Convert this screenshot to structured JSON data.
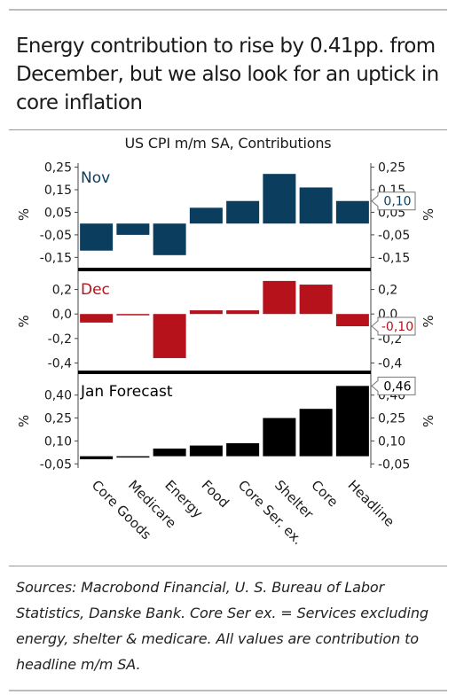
{
  "title": "Energy contribution to rise by 0.41pp. from December, but we also look for an uptick in core inflation",
  "subtitle": "US CPI m/m SA, Contributions",
  "source_note": "Sources: Macrobond Financial, U. S. Bureau of Labor Statistics, Danske Bank. Core Ser ex. = Services excluding energy, shelter & medicare. All values are contribution to headline m/m SA.",
  "chart_data": [
    {
      "type": "bar",
      "panel": "Nov",
      "color": "#0b3d5e",
      "categories": [
        "Core Goods",
        "Medicare",
        "Energy",
        "Food",
        "Core Ser. ex.",
        "Shelter",
        "Core",
        "Headline"
      ],
      "values": [
        -0.12,
        -0.05,
        -0.14,
        0.07,
        0.1,
        0.22,
        0.16,
        0.1
      ],
      "yticks": [
        {
          "v": 0.25,
          "l": "0,25"
        },
        {
          "v": 0.15,
          "l": "0,15"
        },
        {
          "v": 0.05,
          "l": "0,05"
        },
        {
          "v": -0.05,
          "l": "-0,05"
        },
        {
          "v": -0.15,
          "l": "-0,15"
        }
      ],
      "ylim": [
        -0.18,
        0.26
      ],
      "ylabel": "%",
      "last_value_label": "0,10"
    },
    {
      "type": "bar",
      "panel": "Dec",
      "color": "#b5121b",
      "categories": [
        "Core Goods",
        "Medicare",
        "Energy",
        "Food",
        "Core Ser. ex.",
        "Shelter",
        "Core",
        "Headline"
      ],
      "values": [
        -0.07,
        -0.005,
        -0.36,
        0.03,
        0.03,
        0.27,
        0.24,
        -0.1
      ],
      "yticks": [
        {
          "v": 0.2,
          "l": "0,2"
        },
        {
          "v": 0.0,
          "l": "0,0"
        },
        {
          "v": -0.2,
          "l": "-0,2"
        },
        {
          "v": -0.4,
          "l": "-0,4"
        }
      ],
      "ylim": [
        -0.44,
        0.32
      ],
      "ylabel": "%",
      "last_value_label": "-0,10"
    },
    {
      "type": "bar",
      "panel": "Jan Forecast",
      "color": "#000000",
      "categories": [
        "Core Goods",
        "Medicare",
        "Energy",
        "Food",
        "Core Ser. ex.",
        "Shelter",
        "Core",
        "Headline"
      ],
      "values": [
        -0.02,
        0.0,
        0.05,
        0.07,
        0.085,
        0.25,
        0.31,
        0.46
      ],
      "yticks": [
        {
          "v": 0.4,
          "l": "0,40"
        },
        {
          "v": 0.25,
          "l": "0,25"
        },
        {
          "v": 0.1,
          "l": "0,10"
        },
        {
          "v": -0.05,
          "l": "-0,05"
        }
      ],
      "ylim": [
        -0.06,
        0.52
      ],
      "ylabel": "%",
      "last_value_label": "0,46"
    }
  ],
  "x_labels": [
    "Core Goods",
    "Medicare",
    "Energy",
    "Food",
    "Core Ser. ex.",
    "Shelter",
    "Core",
    "Headline"
  ]
}
